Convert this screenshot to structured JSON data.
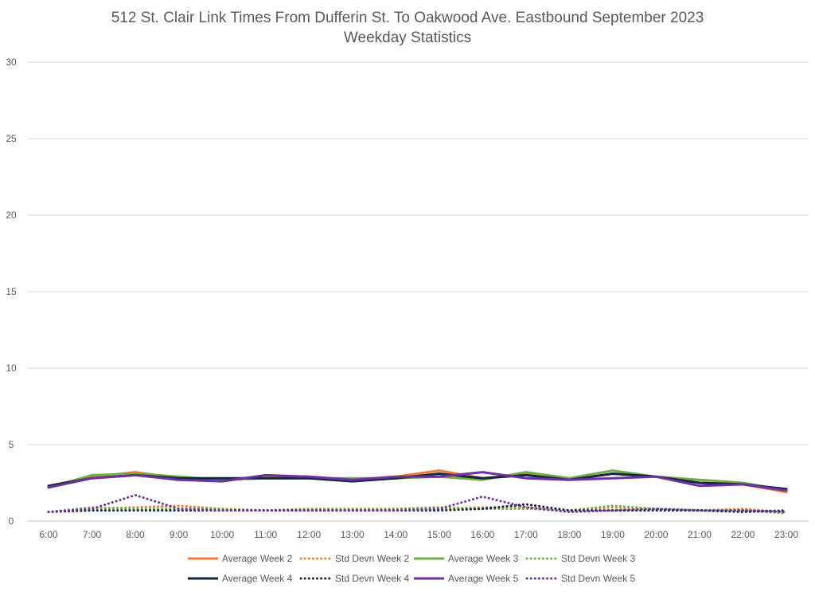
{
  "chart_data": {
    "type": "line",
    "title": "512 St. Clair Link Times From Dufferin St. To Oakwood Ave. Eastbound September 2023",
    "subtitle": "Weekday Statistics",
    "xlabel": "",
    "ylabel": "",
    "ylim": [
      0,
      30
    ],
    "yticks": [
      0,
      5,
      10,
      15,
      20,
      25,
      30
    ],
    "grid": true,
    "legend_position": "bottom",
    "categories": [
      "6:00",
      "7:00",
      "8:00",
      "9:00",
      "10:00",
      "11:00",
      "12:00",
      "13:00",
      "14:00",
      "15:00",
      "16:00",
      "17:00",
      "18:00",
      "19:00",
      "20:00",
      "21:00",
      "22:00",
      "23:00"
    ],
    "series": [
      {
        "name": "Average Week 2",
        "style": "solid",
        "color": "#ED7D31",
        "values": [
          2.3,
          2.9,
          3.2,
          2.8,
          2.7,
          2.9,
          2.9,
          2.7,
          2.9,
          3.3,
          2.8,
          3.1,
          2.7,
          3.1,
          2.9,
          2.5,
          2.4,
          1.9
        ]
      },
      {
        "name": "Std Devn Week 2",
        "style": "dotted",
        "color": "#ED7D31",
        "values": [
          0.6,
          0.8,
          0.9,
          1.0,
          0.8,
          0.7,
          0.7,
          0.7,
          0.8,
          0.8,
          0.9,
          0.9,
          0.7,
          0.9,
          0.8,
          0.7,
          0.8,
          0.6
        ]
      },
      {
        "name": "Average Week 3",
        "style": "solid",
        "color": "#70AD47",
        "values": [
          2.2,
          3.0,
          3.1,
          2.9,
          2.7,
          2.8,
          2.8,
          2.8,
          2.8,
          2.9,
          2.7,
          3.2,
          2.8,
          3.3,
          2.9,
          2.7,
          2.5,
          2.0
        ]
      },
      {
        "name": "Std Devn Week 3",
        "style": "dotted",
        "color": "#70AD47",
        "values": [
          0.6,
          0.9,
          0.8,
          0.8,
          0.8,
          0.7,
          0.8,
          0.8,
          0.8,
          0.9,
          0.8,
          0.8,
          0.7,
          1.0,
          0.8,
          0.7,
          0.7,
          0.5
        ]
      },
      {
        "name": "Average Week 4",
        "style": "solid",
        "color": "#0E2841",
        "values": [
          2.3,
          2.8,
          3.0,
          2.8,
          2.8,
          2.8,
          2.8,
          2.6,
          2.8,
          3.1,
          2.8,
          3.0,
          2.7,
          3.1,
          2.9,
          2.5,
          2.4,
          2.1
        ]
      },
      {
        "name": "Std Devn Week 4",
        "style": "dotted",
        "color": "#0E2841",
        "values": [
          0.6,
          0.7,
          0.7,
          0.7,
          0.7,
          0.7,
          0.7,
          0.7,
          0.7,
          0.7,
          0.8,
          1.1,
          0.7,
          0.7,
          0.7,
          0.7,
          0.6,
          0.7
        ]
      },
      {
        "name": "Average Week 5",
        "style": "solid",
        "color": "#7030A0",
        "values": [
          2.2,
          2.8,
          3.0,
          2.7,
          2.6,
          3.0,
          2.9,
          2.7,
          2.9,
          2.9,
          3.2,
          2.8,
          2.7,
          2.8,
          2.9,
          2.3,
          2.4,
          2.0
        ]
      },
      {
        "name": "Std Devn Week 5",
        "style": "dotted",
        "color": "#7030A0",
        "values": [
          0.6,
          0.8,
          1.7,
          0.8,
          0.7,
          0.7,
          0.7,
          0.7,
          0.7,
          0.8,
          1.6,
          0.9,
          0.6,
          0.7,
          0.8,
          0.7,
          0.7,
          0.6
        ]
      }
    ]
  }
}
